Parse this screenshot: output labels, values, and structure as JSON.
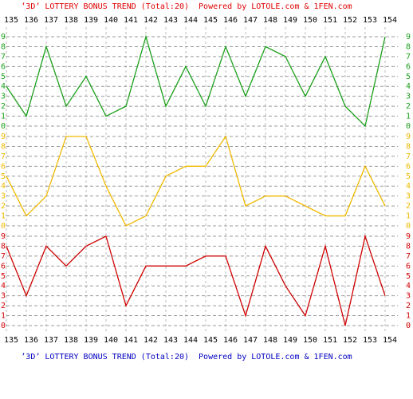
{
  "chart_data": {
    "type": "line",
    "title": "’3D’ LOTTERY BONUS TREND (Total:20)  Powered by LOTOLE.com & 1FEN.com",
    "footer": "’3D’ LOTTERY BONUS TREND (Total:20)  Powered by LOTOLE.com & 1FEN.com",
    "title_color": "#e00000",
    "footer_color": "#0000c0",
    "categories": [
      "135",
      "136",
      "137",
      "138",
      "139",
      "140",
      "141",
      "142",
      "143",
      "144",
      "145",
      "146",
      "147",
      "148",
      "149",
      "150",
      "151",
      "152",
      "153",
      "154"
    ],
    "ylim": [
      0,
      9
    ],
    "yticks": [
      0,
      1,
      2,
      3,
      4,
      5,
      6,
      7,
      8,
      9
    ],
    "grid": true,
    "series": [
      {
        "color": "#1aa01a",
        "values": [
          4,
          1,
          8,
          2,
          5,
          1,
          2,
          9,
          2,
          6,
          2,
          8,
          3,
          8,
          7,
          3,
          7,
          2,
          0,
          9
        ]
      },
      {
        "color": "#f0b800",
        "values": [
          5,
          1,
          3,
          9,
          9,
          4,
          0,
          1,
          5,
          6,
          6,
          9,
          2,
          3,
          3,
          2,
          1,
          1,
          6,
          2
        ]
      },
      {
        "color": "#d00000",
        "values": [
          8,
          3,
          8,
          6,
          8,
          9,
          2,
          6,
          6,
          6,
          7,
          7,
          1,
          8,
          4,
          1,
          8,
          0,
          9,
          3
        ]
      }
    ]
  }
}
